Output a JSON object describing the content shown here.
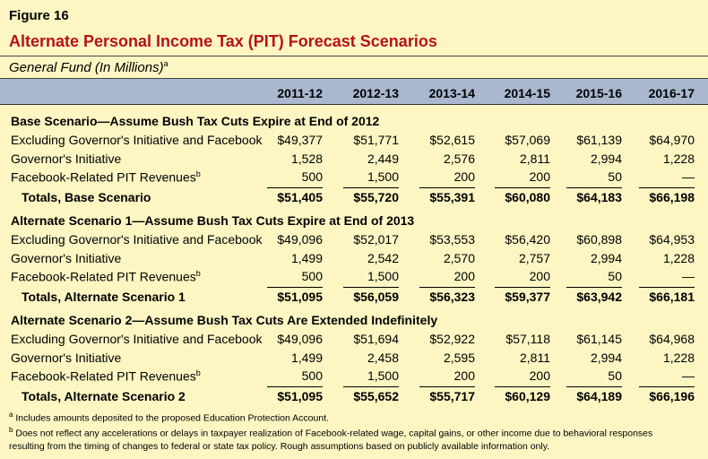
{
  "figure_label": "Figure 16",
  "title": "Alternate Personal Income Tax (PIT) Forecast Scenarios",
  "subtitle": "General Fund (In Millions)",
  "subtitle_mark": "a",
  "columns": [
    "2011-12",
    "2012-13",
    "2013-14",
    "2014-15",
    "2015-16",
    "2016-17"
  ],
  "sections": [
    {
      "title": "Base Scenario—Assume Bush Tax Cuts Expire at End of 2012",
      "rows": [
        {
          "label": "Excluding Governor's Initiative and Facebook",
          "mark": "",
          "values": [
            "$49,377",
            "$51,771",
            "$52,615",
            "$57,069",
            "$61,139",
            "$64,970"
          ]
        },
        {
          "label": "Governor's Initiative",
          "mark": "",
          "values": [
            "1,528",
            "2,449",
            "2,576",
            "2,811",
            "2,994",
            "1,228"
          ]
        },
        {
          "label": "Facebook-Related PIT Revenues",
          "mark": "b",
          "values": [
            "500",
            "1,500",
            "200",
            "200",
            "50",
            "—"
          ]
        }
      ],
      "total": {
        "label": "Totals, Base Scenario",
        "values": [
          "$51,405",
          "$55,720",
          "$55,391",
          "$60,080",
          "$64,183",
          "$66,198"
        ]
      }
    },
    {
      "title": "Alternate Scenario 1—Assume Bush Tax Cuts Expire at End of 2013",
      "rows": [
        {
          "label": "Excluding Governor's Initiative and Facebook",
          "mark": "",
          "values": [
            "$49,096",
            "$52,017",
            "$53,553",
            "$56,420",
            "$60,898",
            "$64,953"
          ]
        },
        {
          "label": "Governor's Initiative",
          "mark": "",
          "values": [
            "1,499",
            "2,542",
            "2,570",
            "2,757",
            "2,994",
            "1,228"
          ]
        },
        {
          "label": "Facebook-Related PIT Revenues",
          "mark": "b",
          "values": [
            "500",
            "1,500",
            "200",
            "200",
            "50",
            "—"
          ]
        }
      ],
      "total": {
        "label": "Totals, Alternate Scenario 1",
        "values": [
          "$51,095",
          "$56,059",
          "$56,323",
          "$59,377",
          "$63,942",
          "$66,181"
        ]
      }
    },
    {
      "title": "Alternate Scenario 2—Assume Bush Tax Cuts Are Extended Indefinitely",
      "rows": [
        {
          "label": "Excluding Governor's Initiative and Facebook",
          "mark": "",
          "values": [
            "$49,096",
            "$51,694",
            "$52,922",
            "$57,118",
            "$61,145",
            "$64,968"
          ]
        },
        {
          "label": "Governor's Initiative",
          "mark": "",
          "values": [
            "1,499",
            "2,458",
            "2,595",
            "2,811",
            "2,994",
            "1,228"
          ]
        },
        {
          "label": "Facebook-Related PIT Revenues",
          "mark": "b",
          "values": [
            "500",
            "1,500",
            "200",
            "200",
            "50",
            "—"
          ]
        }
      ],
      "total": {
        "label": "Totals, Alternate Scenario 2",
        "values": [
          "$51,095",
          "$55,652",
          "$55,717",
          "$60,129",
          "$64,189",
          "$66,196"
        ]
      }
    }
  ],
  "footnotes": [
    {
      "mark": "a",
      "text": "Includes amounts deposited to the proposed Education Protection Account."
    },
    {
      "mark": "b",
      "text": "Does not reflect any accelerations or delays in taxpayer realization of Facebook-related wage, capital gains, or other income due to behavioral responses resulting from the timing of changes to federal or state tax policy. Rough assumptions based on publicly available information only."
    }
  ],
  "colors": {
    "title": "#b5121b",
    "background": "#fdf6c3",
    "header_band": "#a9b8cf"
  }
}
